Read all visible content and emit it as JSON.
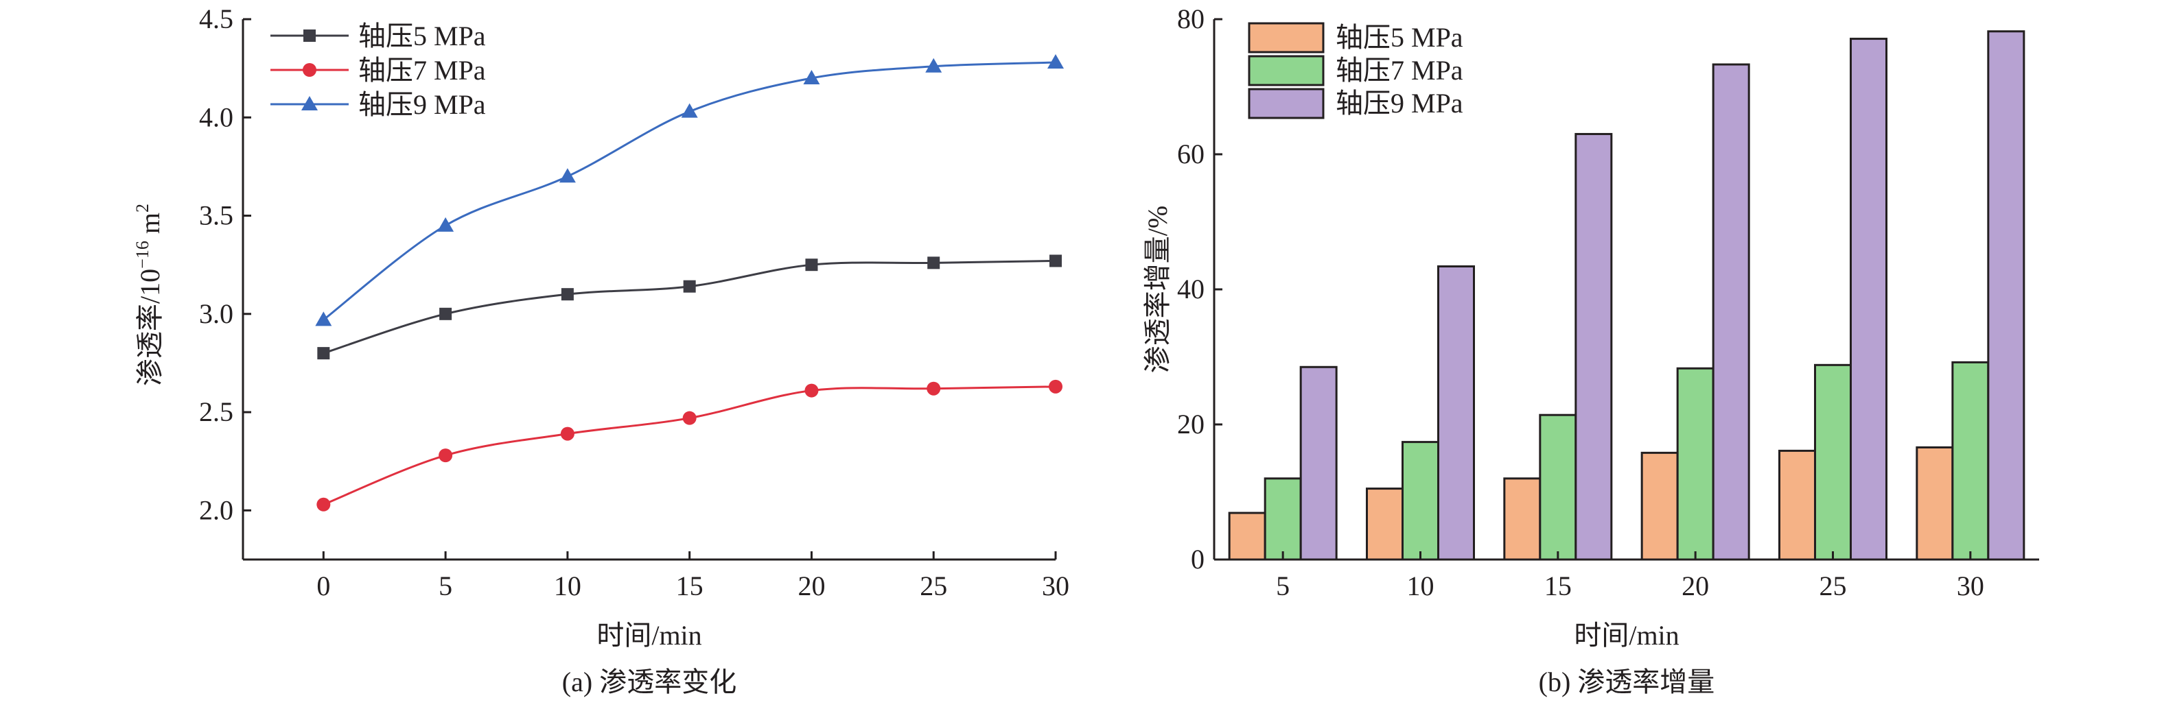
{
  "chart_data": [
    {
      "type": "line",
      "caption": "(a) 渗透率变化",
      "xlabel": "时间/min",
      "ylabel_main": "渗透率/10",
      "ylabel_sup": "−16",
      "ylabel_unit": " m",
      "ylabel_unit_sup": "2",
      "x": [
        0,
        5,
        10,
        15,
        20,
        25,
        30
      ],
      "xlim": [
        -3.3,
        30
      ],
      "ylim": [
        1.75,
        4.5
      ],
      "xticks": [
        "0",
        "5",
        "10",
        "15",
        "20",
        "25",
        "30"
      ],
      "yticks": [
        "2.0",
        "2.5",
        "3.0",
        "3.5",
        "4.0",
        "4.5"
      ],
      "ytick_values": [
        2.0,
        2.5,
        3.0,
        3.5,
        4.0,
        4.5
      ],
      "legend_position": "top-left",
      "series": [
        {
          "name": "轴压5 MPa",
          "marker": "square",
          "color": "#3d3d45",
          "values": [
            2.8,
            3.0,
            3.1,
            3.14,
            3.25,
            3.26,
            3.27
          ]
        },
        {
          "name": "轴压7 MPa",
          "marker": "circle",
          "color": "#e0303f",
          "values": [
            2.03,
            2.28,
            2.39,
            2.47,
            2.61,
            2.62,
            2.63
          ]
        },
        {
          "name": "轴压9 MPa",
          "marker": "triangle",
          "color": "#3a6bbf",
          "values": [
            2.97,
            3.45,
            3.7,
            4.03,
            4.2,
            4.26,
            4.28
          ]
        }
      ]
    },
    {
      "type": "bar",
      "caption": "(b) 渗透率增量",
      "xlabel": "时间/min",
      "ylabel": "渗透率增量/%",
      "categories": [
        "5",
        "10",
        "15",
        "20",
        "25",
        "30"
      ],
      "ylim": [
        0,
        80
      ],
      "yticks": [
        "0",
        "20",
        "40",
        "60",
        "80"
      ],
      "ytick_values": [
        0,
        20,
        40,
        60,
        80
      ],
      "legend_position": "top-left",
      "series": [
        {
          "name": "轴压5 MPa",
          "color": "#f5b286",
          "values": [
            6.9,
            10.5,
            12.0,
            15.8,
            16.1,
            16.6
          ]
        },
        {
          "name": "轴压7 MPa",
          "color": "#8fd68f",
          "values": [
            12.0,
            17.4,
            21.4,
            28.3,
            28.8,
            29.2
          ]
        },
        {
          "name": "轴压9 MPa",
          "color": "#b7a2d2",
          "values": [
            28.5,
            43.4,
            63.0,
            73.3,
            77.1,
            78.2
          ]
        }
      ]
    }
  ]
}
